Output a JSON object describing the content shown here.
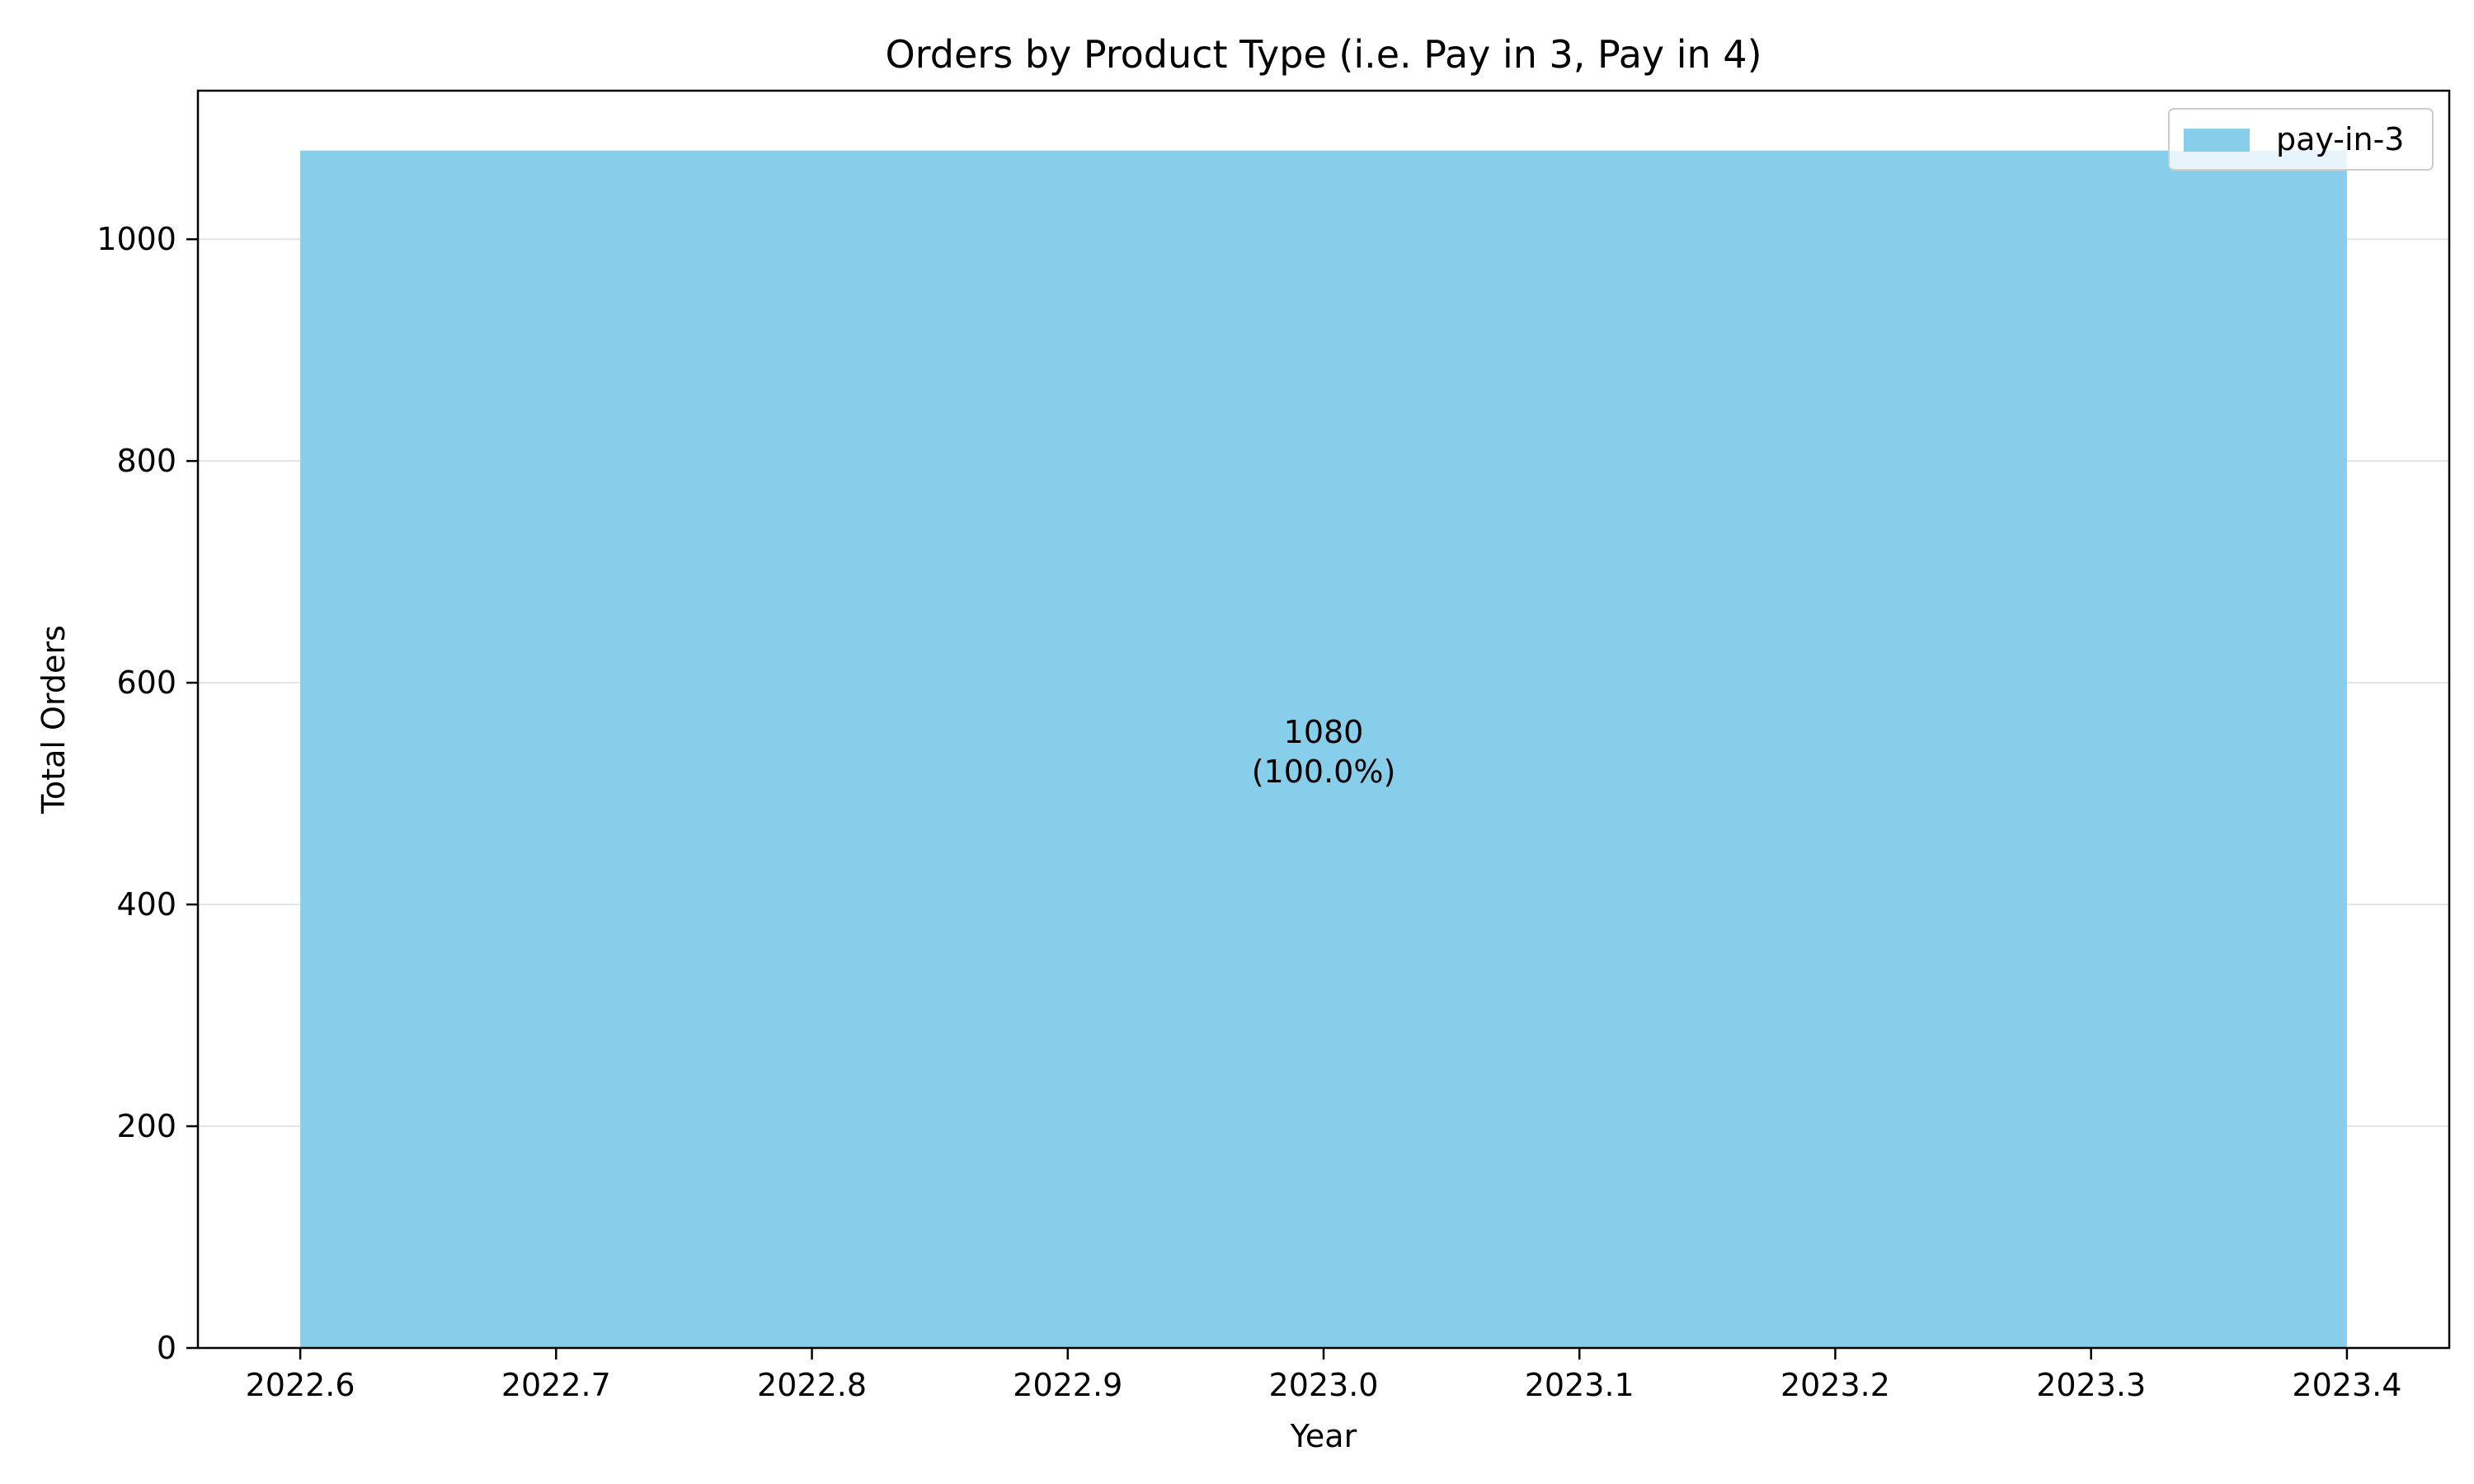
{
  "chart_data": {
    "type": "area",
    "title": "Orders by Product Type (i.e. Pay in 3, Pay in 4)",
    "xlabel": "Year",
    "ylabel": "Total Orders",
    "xlim": [
      2022.56,
      2023.44
    ],
    "ylim": [
      0,
      1134
    ],
    "xticks": [
      2022.6,
      2022.7,
      2022.8,
      2022.9,
      2023.0,
      2023.1,
      2023.2,
      2023.3,
      2023.4
    ],
    "xtick_labels": [
      "2022.6",
      "2022.7",
      "2022.8",
      "2022.9",
      "2023.0",
      "2023.1",
      "2023.2",
      "2023.3",
      "2023.4"
    ],
    "yticks": [
      0,
      200,
      400,
      600,
      800,
      1000
    ],
    "ytick_labels": [
      "0",
      "200",
      "400",
      "600",
      "800",
      "1000"
    ],
    "grid": "y",
    "legend_position": "top-right",
    "series": [
      {
        "name": "pay-in-3",
        "color": "#87ceeb",
        "x": [
          2022.6,
          2023.4
        ],
        "values": [
          1080,
          1080
        ]
      }
    ],
    "annotations": [
      {
        "x": 2023.0,
        "y": 540,
        "lines": [
          "1080",
          "(100.0%)"
        ]
      }
    ]
  }
}
